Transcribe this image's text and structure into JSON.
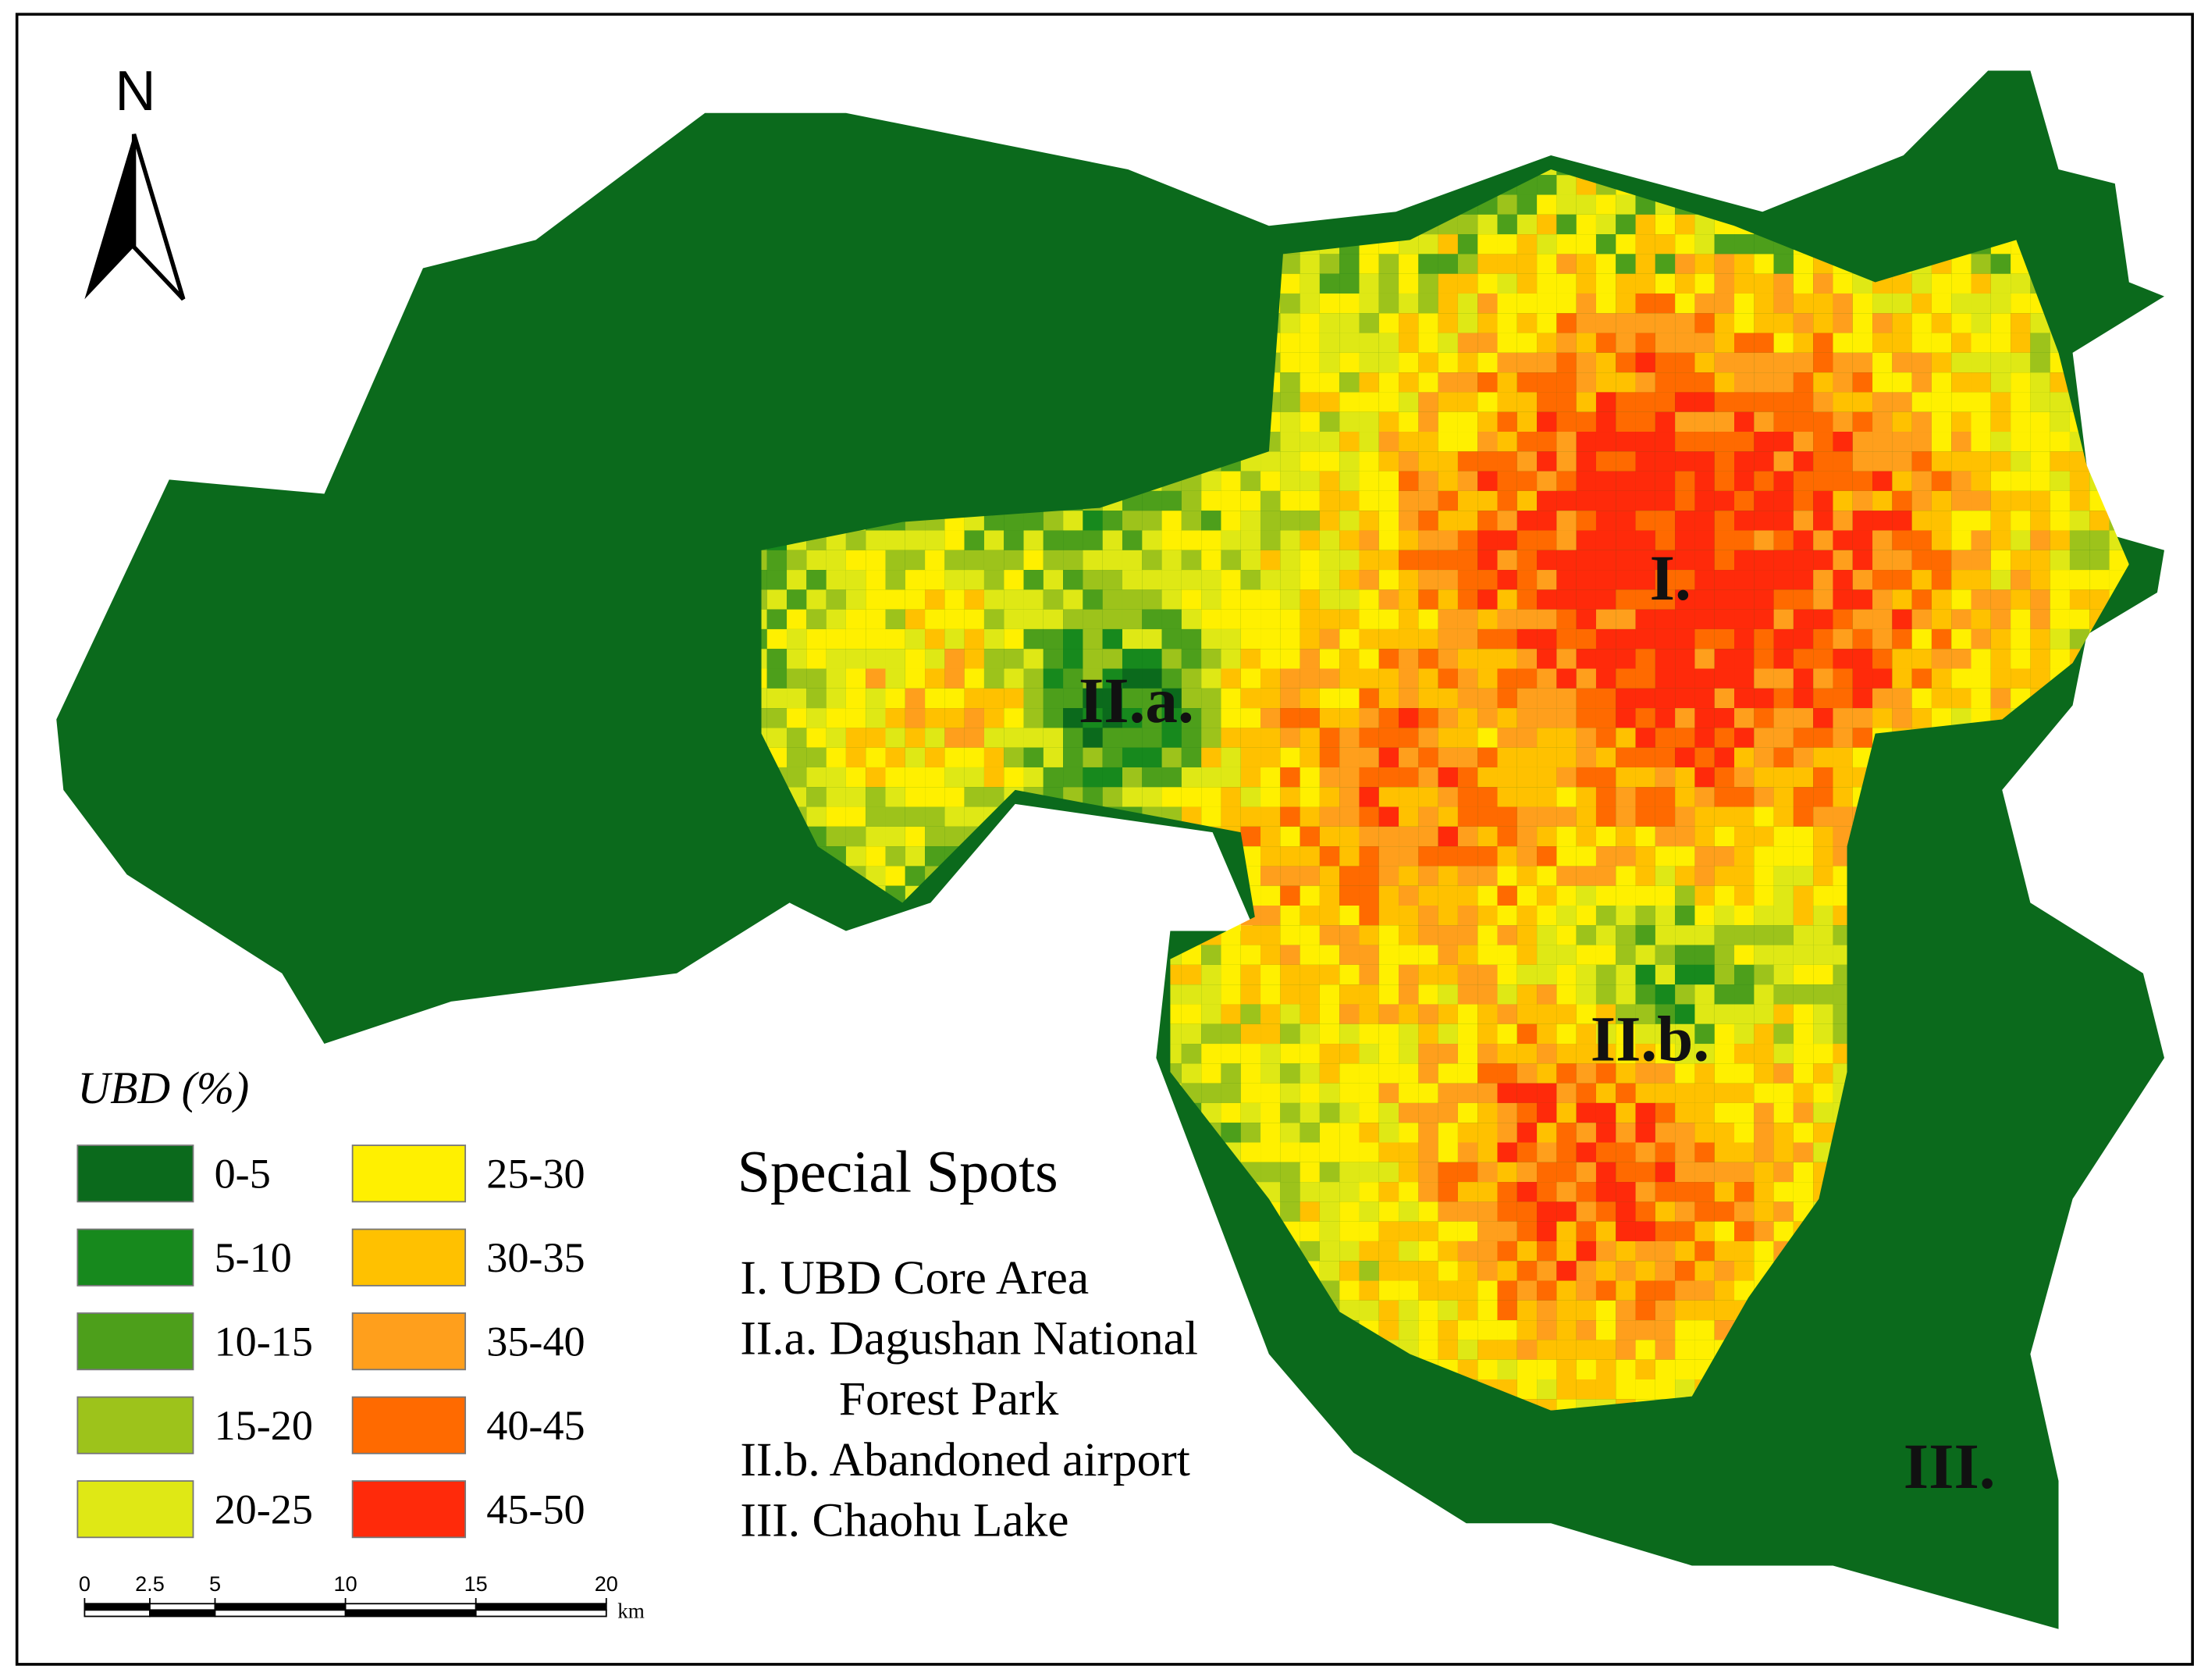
{
  "north_arrow": {
    "label": "N"
  },
  "legend": {
    "title": "UBD (%)",
    "items": [
      {
        "label": "0-5",
        "color": "#0b6a1c"
      },
      {
        "label": "5-10",
        "color": "#17891d"
      },
      {
        "label": "10-15",
        "color": "#4d9f1b"
      },
      {
        "label": "15-20",
        "color": "#9dc31b"
      },
      {
        "label": "20-25",
        "color": "#dfe815"
      },
      {
        "label": "25-30",
        "color": "#fff000"
      },
      {
        "label": "30-35",
        "color": "#ffc100"
      },
      {
        "label": "35-40",
        "color": "#ff9f1c"
      },
      {
        "label": "40-45",
        "color": "#ff6a00"
      },
      {
        "label": "45-50",
        "color": "#ff2a0a"
      }
    ]
  },
  "map_labels": [
    "I.",
    "II.a.",
    "II.b.",
    "III."
  ],
  "special_spots": {
    "title": "Special Spots",
    "items": [
      [
        "I. UBD Core Area"
      ],
      [
        "II.a. Dagushan National",
        "Forest Park"
      ],
      [
        "II.b. Abandoned airport"
      ],
      [
        "III. Chaohu Lake"
      ]
    ]
  },
  "scale_bar": {
    "ticks": [
      0,
      2.5,
      5,
      10,
      15,
      20
    ],
    "unit": "km"
  }
}
